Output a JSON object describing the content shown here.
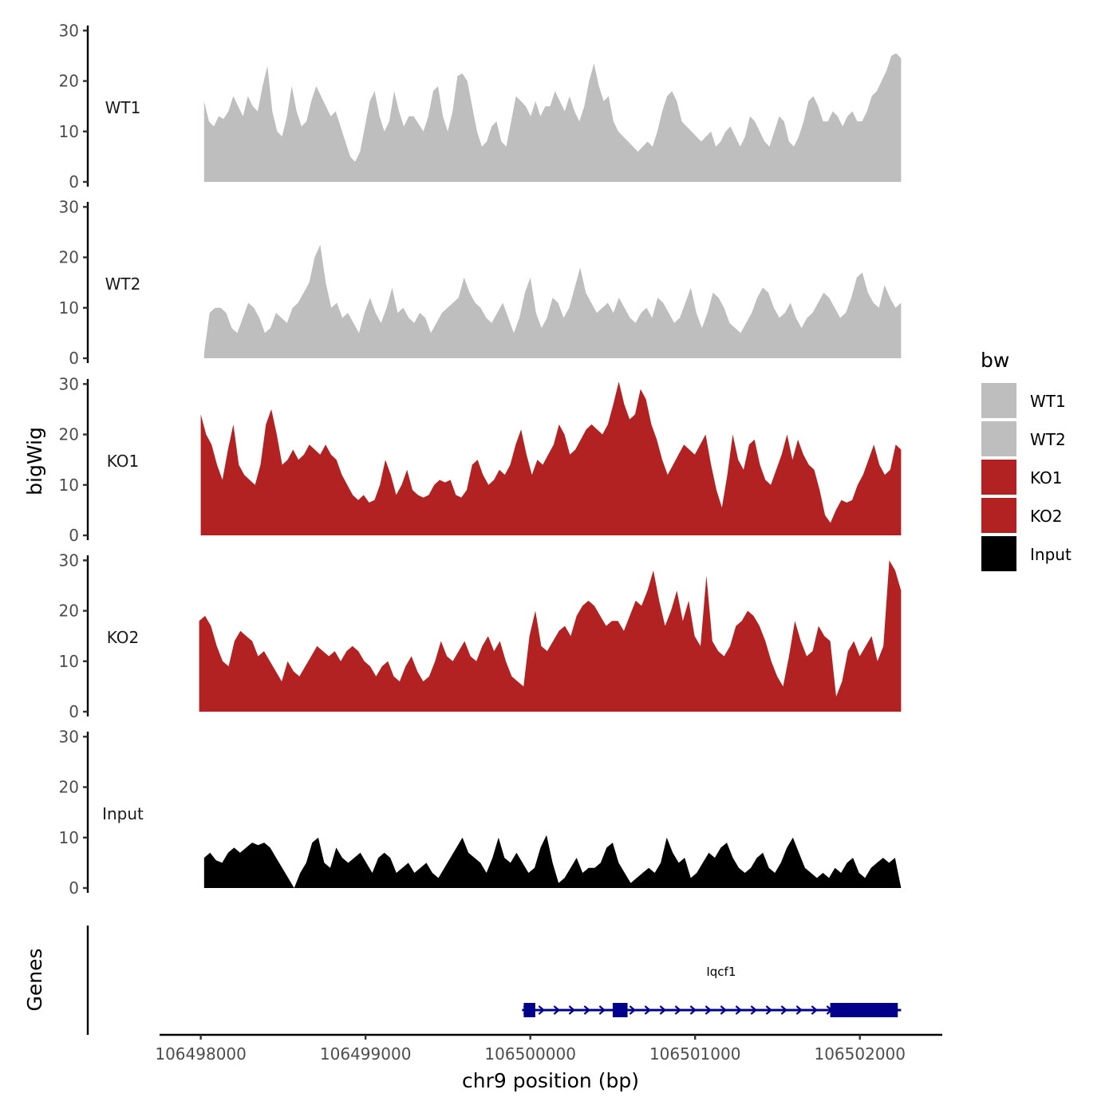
{
  "chart_data": {
    "type": "area",
    "x_axis": {
      "label": "chr9 position (bp)",
      "range": [
        106497750,
        106502500
      ],
      "ticks": [
        106498000,
        106499000,
        106500000,
        106501000,
        106502000
      ],
      "tick_labels": [
        "106498000",
        "106499000",
        "106500000",
        "106501000",
        "106502000"
      ]
    },
    "y_axis": {
      "label": "bigWig",
      "range": [
        0,
        31
      ],
      "ticks": [
        0,
        10,
        20,
        30
      ],
      "tick_labels": [
        "0",
        "10",
        "20",
        "30"
      ]
    },
    "legend": {
      "title": "bw",
      "position": "right",
      "entries": [
        {
          "label": "WT1",
          "color": "#bebebe"
        },
        {
          "label": "WT2",
          "color": "#bebebe"
        },
        {
          "label": "KO1",
          "color": "#b22222"
        },
        {
          "label": "KO2",
          "color": "#b22222"
        },
        {
          "label": "Input",
          "color": "#000000"
        }
      ]
    },
    "grid": false,
    "series": [
      {
        "name": "WT1",
        "color": "#bebebe",
        "x_start": 106498020,
        "x_end": 106502250,
        "values": [
          16,
          12,
          11,
          13,
          12.5,
          14,
          17,
          15,
          13,
          17,
          15,
          14,
          19,
          23,
          14,
          10,
          9,
          13,
          19,
          14,
          11,
          12,
          16,
          19,
          17,
          15,
          13,
          14,
          11,
          8,
          5,
          4,
          6,
          11,
          16,
          18,
          13,
          10,
          12,
          18,
          14,
          11,
          13,
          13,
          11.5,
          10,
          13,
          18,
          19,
          13,
          10,
          14,
          21,
          21.5,
          20,
          15,
          10,
          7,
          8,
          11,
          12,
          8,
          7,
          12,
          17,
          16,
          15,
          13,
          16,
          13,
          15,
          15,
          18,
          16,
          14,
          17,
          14,
          12,
          15,
          20,
          23.5,
          19,
          16,
          17,
          12,
          10,
          9,
          8,
          7,
          6,
          7,
          8,
          7,
          10,
          14,
          17,
          18,
          16,
          12,
          11,
          10,
          9,
          8,
          9,
          10,
          7,
          8,
          10,
          11,
          9,
          7,
          9,
          13,
          12,
          10,
          8,
          7,
          10,
          13,
          12,
          8,
          7,
          9,
          12,
          16,
          17,
          15,
          12,
          12,
          14,
          13,
          11,
          13,
          14,
          12,
          12,
          14,
          17,
          18,
          20,
          22,
          25,
          25.5,
          24.5
        ]
      },
      {
        "name": "WT2",
        "color": "#bebebe",
        "x_start": 106498020,
        "x_end": 106502250,
        "values": [
          1,
          9,
          10,
          10,
          9,
          6,
          5,
          8,
          11,
          10,
          8,
          5,
          6,
          9,
          8,
          7,
          10,
          11,
          13,
          15,
          20,
          22.5,
          15,
          10,
          11,
          8,
          9,
          7,
          5,
          9,
          12,
          9,
          7,
          10,
          14,
          9,
          10,
          8,
          7,
          9,
          8,
          5,
          7,
          9,
          10,
          11,
          12,
          16,
          13,
          11,
          10,
          8,
          7,
          9,
          11,
          8,
          5,
          8,
          13,
          16,
          9,
          6,
          8,
          12,
          11,
          8,
          10,
          14,
          18,
          13,
          11,
          9,
          10,
          11,
          9,
          12,
          10,
          8,
          7,
          9,
          10,
          8,
          12,
          11,
          9,
          7,
          8,
          11,
          14,
          9,
          6,
          9,
          13,
          12,
          10,
          7,
          6,
          5,
          7,
          9,
          12,
          14,
          13,
          10,
          8,
          9,
          11,
          8,
          6,
          8,
          9,
          11,
          13,
          12,
          10,
          8,
          9,
          12,
          16,
          17,
          13,
          11,
          10,
          14.5,
          12,
          10,
          11
        ]
      },
      {
        "name": "KO1",
        "color": "#b22222",
        "x_start": 106498000,
        "x_end": 106502250,
        "values": [
          24,
          20,
          18,
          14,
          11,
          17,
          22,
          14,
          12,
          11,
          10,
          14,
          22,
          25,
          20,
          14,
          15,
          17,
          15,
          16,
          18,
          17,
          16,
          18,
          16,
          15,
          12,
          10,
          8,
          7,
          8,
          6.5,
          7,
          10,
          15,
          12,
          8,
          10,
          13,
          9,
          8,
          7.5,
          8,
          10,
          11,
          10.5,
          11,
          8,
          7.5,
          9,
          14,
          15,
          12,
          10,
          11,
          13,
          12,
          14,
          18,
          21,
          16,
          12,
          15,
          14,
          16,
          18,
          22,
          20,
          16,
          17,
          19,
          21,
          22,
          21,
          20,
          22,
          26,
          30.5,
          26,
          23,
          24,
          29,
          27,
          22,
          19,
          15,
          12,
          14,
          16,
          18,
          17,
          16,
          18,
          20,
          14,
          9,
          5.5,
          12,
          20,
          15,
          13,
          18,
          19,
          14,
          11,
          10,
          13,
          16,
          20,
          15,
          19,
          16,
          14,
          13,
          9,
          4,
          2.5,
          5,
          7,
          6.5,
          7,
          10,
          12,
          15,
          18,
          14,
          12,
          13,
          18,
          17
        ]
      },
      {
        "name": "KO2",
        "color": "#b22222",
        "x_start": 106497990,
        "x_end": 106502250,
        "values": [
          18,
          19,
          17,
          13,
          10,
          9,
          14,
          16,
          15,
          14,
          11,
          12,
          10,
          8,
          6,
          10,
          8,
          7,
          9,
          11,
          13,
          12,
          11,
          12,
          10,
          12,
          13,
          12,
          10,
          9,
          7,
          9,
          10,
          7,
          6,
          9,
          11,
          8,
          6,
          7,
          10,
          14,
          11,
          10,
          12,
          14,
          11,
          10,
          13,
          15,
          12,
          14,
          10,
          7,
          6,
          5,
          15,
          20,
          13,
          12,
          14,
          16,
          17,
          15,
          19,
          21,
          22,
          21,
          19,
          17,
          18,
          18,
          16,
          19,
          22,
          21,
          24,
          28,
          22,
          17,
          20,
          24,
          18,
          22,
          15,
          13,
          27,
          14,
          12,
          11,
          13,
          17,
          18,
          20,
          19,
          17,
          14,
          10,
          7,
          5,
          11,
          18,
          14,
          11,
          12,
          17,
          15,
          14,
          3,
          6,
          12,
          14,
          11,
          13,
          15,
          10,
          13,
          30,
          28,
          24
        ]
      },
      {
        "name": "Input",
        "color": "#000000",
        "x_start": 106498020,
        "x_end": 106502250,
        "values": [
          6,
          7,
          5.5,
          5,
          7,
          8,
          7,
          8,
          9,
          8.5,
          9,
          8,
          6,
          4,
          2,
          0,
          3,
          5,
          9,
          10,
          5,
          4,
          8,
          6,
          5,
          6,
          7,
          5,
          3,
          6,
          7,
          6,
          3,
          4,
          5,
          3,
          4,
          5,
          3,
          2,
          4,
          6,
          8,
          10,
          7,
          6,
          5,
          3,
          6,
          10,
          6,
          5,
          7,
          5,
          3,
          4,
          8,
          10.5,
          5,
          1,
          2,
          4,
          6,
          3,
          4,
          4,
          5,
          8,
          9,
          5,
          3,
          1,
          2,
          3,
          4,
          3,
          5,
          10,
          7,
          5,
          6,
          2,
          3,
          5,
          7,
          6,
          8,
          9,
          6,
          4,
          3,
          4,
          6,
          7,
          4,
          3,
          5,
          8,
          10,
          7,
          4,
          3,
          2,
          3,
          2,
          4,
          3,
          5,
          6,
          3,
          2,
          4,
          5,
          6,
          5,
          6,
          0
        ]
      }
    ],
    "genes": {
      "label": "Genes",
      "strand": "+",
      "color": "#00008b",
      "items": [
        {
          "name": "Iqcf1",
          "start": 106499950,
          "end": 106502250,
          "exons": [
            [
              106499960,
              106500030
            ],
            [
              106500500,
              106500590
            ],
            [
              106501820,
              106502230
            ]
          ]
        }
      ]
    }
  }
}
